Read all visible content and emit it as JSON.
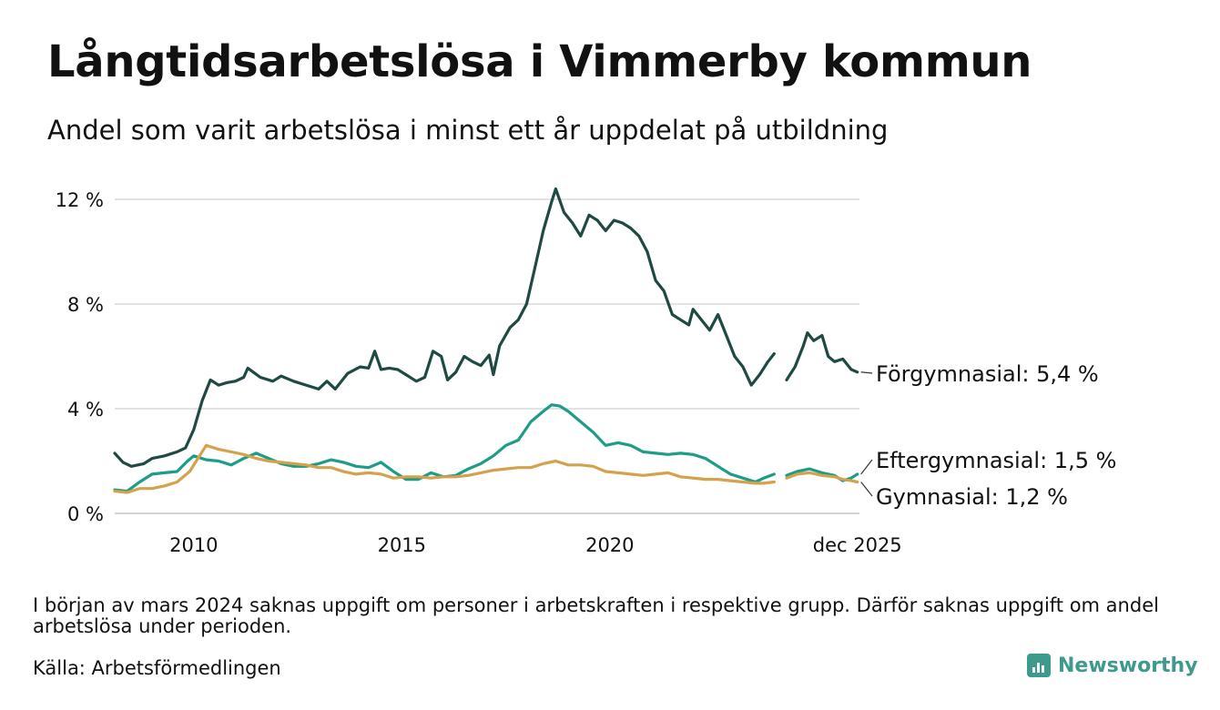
{
  "title": "Långtidsarbetslösa i Vimmerby kommun",
  "subtitle": "Andel som varit arbetslösa i minst ett år uppdelat på utbildning",
  "note": "I början av mars 2024 saknas uppgift om personer i arbetskraften i respektive grupp. Därför saknas uppgift om andel arbetslösa under perioden.",
  "source": "Källa: Arbetsförmedlingen",
  "logo": {
    "text": "Newsworthy",
    "icon": "bar-chart-bubble-icon",
    "color": "#3e9a8c"
  },
  "chart_data": {
    "type": "line",
    "title": "Långtidsarbetslösa i Vimmerby kommun",
    "ylabel": "",
    "xlabel": "",
    "ylim": [
      0,
      12
    ],
    "xlim": [
      2008.1,
      2026.0
    ],
    "y_ticks": [
      0,
      4,
      8,
      12
    ],
    "y_tick_labels": [
      "0 %",
      "4 %",
      "8 %",
      "12 %"
    ],
    "x_ticks": [
      2010,
      2015,
      2020,
      2025.95
    ],
    "x_tick_labels": [
      "2010",
      "2015",
      "2020",
      "dec 2025"
    ],
    "grid": true,
    "gap": [
      2023.95,
      2024.25
    ],
    "series": [
      {
        "name": "Förgymnasial",
        "label": "Förgymnasial: 5,4 %",
        "color": "#1f4a44",
        "points": [
          [
            2008.1,
            2.3
          ],
          [
            2008.3,
            1.95
          ],
          [
            2008.5,
            1.8
          ],
          [
            2008.8,
            1.9
          ],
          [
            2009.0,
            2.1
          ],
          [
            2009.3,
            2.2
          ],
          [
            2009.6,
            2.35
          ],
          [
            2009.8,
            2.5
          ],
          [
            2010.0,
            3.2
          ],
          [
            2010.2,
            4.3
          ],
          [
            2010.4,
            5.1
          ],
          [
            2010.6,
            4.9
          ],
          [
            2010.8,
            5.0
          ],
          [
            2011.0,
            5.05
          ],
          [
            2011.2,
            5.2
          ],
          [
            2011.3,
            5.55
          ],
          [
            2011.6,
            5.2
          ],
          [
            2011.9,
            5.05
          ],
          [
            2012.1,
            5.25
          ],
          [
            2012.4,
            5.05
          ],
          [
            2012.7,
            4.9
          ],
          [
            2013.0,
            4.75
          ],
          [
            2013.2,
            5.05
          ],
          [
            2013.4,
            4.75
          ],
          [
            2013.7,
            5.35
          ],
          [
            2014.0,
            5.6
          ],
          [
            2014.2,
            5.55
          ],
          [
            2014.35,
            6.2
          ],
          [
            2014.5,
            5.5
          ],
          [
            2014.7,
            5.55
          ],
          [
            2014.9,
            5.5
          ],
          [
            2015.1,
            5.3
          ],
          [
            2015.35,
            5.05
          ],
          [
            2015.55,
            5.2
          ],
          [
            2015.75,
            6.2
          ],
          [
            2015.95,
            6.0
          ],
          [
            2016.1,
            5.1
          ],
          [
            2016.3,
            5.4
          ],
          [
            2016.5,
            6.0
          ],
          [
            2016.7,
            5.8
          ],
          [
            2016.9,
            5.65
          ],
          [
            2017.1,
            6.05
          ],
          [
            2017.2,
            5.3
          ],
          [
            2017.35,
            6.4
          ],
          [
            2017.6,
            7.1
          ],
          [
            2017.8,
            7.4
          ],
          [
            2018.0,
            8.0
          ],
          [
            2018.2,
            9.4
          ],
          [
            2018.4,
            10.8
          ],
          [
            2018.6,
            11.9
          ],
          [
            2018.7,
            12.4
          ],
          [
            2018.9,
            11.5
          ],
          [
            2019.1,
            11.1
          ],
          [
            2019.3,
            10.6
          ],
          [
            2019.5,
            11.4
          ],
          [
            2019.7,
            11.2
          ],
          [
            2019.9,
            10.8
          ],
          [
            2020.1,
            11.2
          ],
          [
            2020.3,
            11.1
          ],
          [
            2020.5,
            10.9
          ],
          [
            2020.7,
            10.6
          ],
          [
            2020.9,
            10.0
          ],
          [
            2021.1,
            8.9
          ],
          [
            2021.3,
            8.5
          ],
          [
            2021.5,
            7.6
          ],
          [
            2021.7,
            7.4
          ],
          [
            2021.9,
            7.2
          ],
          [
            2022.0,
            7.8
          ],
          [
            2022.2,
            7.4
          ],
          [
            2022.4,
            7.0
          ],
          [
            2022.6,
            7.6
          ],
          [
            2022.8,
            6.8
          ],
          [
            2023.0,
            6.0
          ],
          [
            2023.2,
            5.6
          ],
          [
            2023.4,
            4.9
          ],
          [
            2023.6,
            5.3
          ],
          [
            2023.8,
            5.8
          ],
          [
            2023.95,
            6.1
          ],
          [
            null,
            null
          ],
          [
            2024.25,
            5.1
          ],
          [
            2024.45,
            5.6
          ],
          [
            2024.65,
            6.4
          ],
          [
            2024.75,
            6.9
          ],
          [
            2024.9,
            6.6
          ],
          [
            2025.1,
            6.8
          ],
          [
            2025.25,
            6.0
          ],
          [
            2025.4,
            5.8
          ],
          [
            2025.6,
            5.9
          ],
          [
            2025.8,
            5.5
          ],
          [
            2025.95,
            5.4
          ]
        ]
      },
      {
        "name": "Eftergymnasial",
        "label": "Eftergymnasial: 1,5 %",
        "color": "#1d9c88",
        "points": [
          [
            2008.1,
            0.9
          ],
          [
            2008.4,
            0.85
          ],
          [
            2008.7,
            1.2
          ],
          [
            2009.0,
            1.5
          ],
          [
            2009.3,
            1.55
          ],
          [
            2009.6,
            1.6
          ],
          [
            2009.85,
            2.0
          ],
          [
            2010.0,
            2.2
          ],
          [
            2010.3,
            2.05
          ],
          [
            2010.6,
            2.0
          ],
          [
            2010.9,
            1.85
          ],
          [
            2011.2,
            2.1
          ],
          [
            2011.5,
            2.3
          ],
          [
            2011.8,
            2.1
          ],
          [
            2012.1,
            1.9
          ],
          [
            2012.4,
            1.8
          ],
          [
            2012.7,
            1.8
          ],
          [
            2013.0,
            1.9
          ],
          [
            2013.3,
            2.05
          ],
          [
            2013.6,
            1.95
          ],
          [
            2013.9,
            1.8
          ],
          [
            2014.2,
            1.75
          ],
          [
            2014.5,
            1.95
          ],
          [
            2014.8,
            1.6
          ],
          [
            2015.1,
            1.3
          ],
          [
            2015.4,
            1.3
          ],
          [
            2015.7,
            1.55
          ],
          [
            2016.0,
            1.4
          ],
          [
            2016.3,
            1.45
          ],
          [
            2016.6,
            1.7
          ],
          [
            2016.9,
            1.9
          ],
          [
            2017.2,
            2.2
          ],
          [
            2017.5,
            2.6
          ],
          [
            2017.8,
            2.8
          ],
          [
            2018.1,
            3.5
          ],
          [
            2018.4,
            3.9
          ],
          [
            2018.6,
            4.15
          ],
          [
            2018.8,
            4.1
          ],
          [
            2019.0,
            3.9
          ],
          [
            2019.3,
            3.5
          ],
          [
            2019.6,
            3.1
          ],
          [
            2019.9,
            2.6
          ],
          [
            2020.2,
            2.7
          ],
          [
            2020.5,
            2.6
          ],
          [
            2020.8,
            2.35
          ],
          [
            2021.1,
            2.3
          ],
          [
            2021.4,
            2.25
          ],
          [
            2021.7,
            2.3
          ],
          [
            2022.0,
            2.25
          ],
          [
            2022.3,
            2.1
          ],
          [
            2022.6,
            1.8
          ],
          [
            2022.9,
            1.5
          ],
          [
            2023.2,
            1.35
          ],
          [
            2023.5,
            1.2
          ],
          [
            2023.7,
            1.35
          ],
          [
            2023.95,
            1.5
          ],
          [
            null,
            null
          ],
          [
            2024.25,
            1.45
          ],
          [
            2024.5,
            1.6
          ],
          [
            2024.8,
            1.7
          ],
          [
            2025.1,
            1.55
          ],
          [
            2025.4,
            1.45
          ],
          [
            2025.6,
            1.25
          ],
          [
            2025.8,
            1.35
          ],
          [
            2025.95,
            1.5
          ]
        ]
      },
      {
        "name": "Gymnasial",
        "label": "Gymnasial: 1,2 %",
        "color": "#d4a24c",
        "points": [
          [
            2008.1,
            0.85
          ],
          [
            2008.4,
            0.8
          ],
          [
            2008.7,
            0.95
          ],
          [
            2009.0,
            0.95
          ],
          [
            2009.3,
            1.05
          ],
          [
            2009.6,
            1.2
          ],
          [
            2009.9,
            1.6
          ],
          [
            2010.1,
            2.1
          ],
          [
            2010.3,
            2.6
          ],
          [
            2010.6,
            2.45
          ],
          [
            2010.9,
            2.35
          ],
          [
            2011.2,
            2.25
          ],
          [
            2011.5,
            2.1
          ],
          [
            2011.8,
            2.0
          ],
          [
            2012.1,
            1.95
          ],
          [
            2012.4,
            1.9
          ],
          [
            2012.7,
            1.85
          ],
          [
            2013.0,
            1.75
          ],
          [
            2013.3,
            1.75
          ],
          [
            2013.6,
            1.6
          ],
          [
            2013.9,
            1.5
          ],
          [
            2014.2,
            1.55
          ],
          [
            2014.5,
            1.5
          ],
          [
            2014.8,
            1.35
          ],
          [
            2015.1,
            1.4
          ],
          [
            2015.4,
            1.4
          ],
          [
            2015.7,
            1.35
          ],
          [
            2016.0,
            1.4
          ],
          [
            2016.3,
            1.4
          ],
          [
            2016.6,
            1.45
          ],
          [
            2016.9,
            1.55
          ],
          [
            2017.2,
            1.65
          ],
          [
            2017.5,
            1.7
          ],
          [
            2017.8,
            1.75
          ],
          [
            2018.1,
            1.75
          ],
          [
            2018.4,
            1.9
          ],
          [
            2018.7,
            2.0
          ],
          [
            2019.0,
            1.85
          ],
          [
            2019.3,
            1.85
          ],
          [
            2019.6,
            1.8
          ],
          [
            2019.9,
            1.6
          ],
          [
            2020.2,
            1.55
          ],
          [
            2020.5,
            1.5
          ],
          [
            2020.8,
            1.45
          ],
          [
            2021.1,
            1.5
          ],
          [
            2021.4,
            1.55
          ],
          [
            2021.7,
            1.4
          ],
          [
            2022.0,
            1.35
          ],
          [
            2022.3,
            1.3
          ],
          [
            2022.6,
            1.3
          ],
          [
            2022.9,
            1.25
          ],
          [
            2023.2,
            1.2
          ],
          [
            2023.5,
            1.15
          ],
          [
            2023.7,
            1.15
          ],
          [
            2023.95,
            1.2
          ],
          [
            null,
            null
          ],
          [
            2024.25,
            1.35
          ],
          [
            2024.5,
            1.5
          ],
          [
            2024.8,
            1.55
          ],
          [
            2025.1,
            1.45
          ],
          [
            2025.4,
            1.4
          ],
          [
            2025.6,
            1.3
          ],
          [
            2025.8,
            1.25
          ],
          [
            2025.95,
            1.2
          ]
        ]
      }
    ]
  }
}
